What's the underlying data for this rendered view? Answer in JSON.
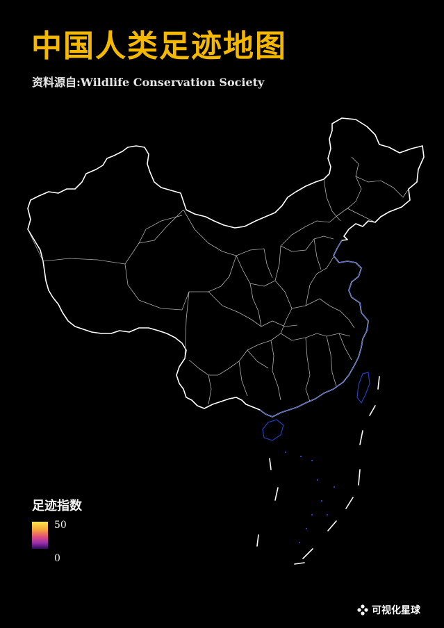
{
  "header": {
    "title": "中国人类足迹地图",
    "source": "资料源自:Wildlife Conservation Society"
  },
  "legend": {
    "title": "足迹指数",
    "max_label": "50",
    "min_label": "0",
    "colors": [
      "#fce74a",
      "#f7a33a",
      "#e3507a",
      "#9b2fae",
      "#2c0c5a"
    ]
  },
  "map": {
    "boundary_color": "#ffffff",
    "coast_color": "#1f3fbf",
    "background": "#000000"
  },
  "footer": {
    "brand_name": "可视化星球",
    "brand_icon": "flower-logo-icon"
  },
  "colors": {
    "title": "#f5b800",
    "text": "#f2f2f2"
  }
}
